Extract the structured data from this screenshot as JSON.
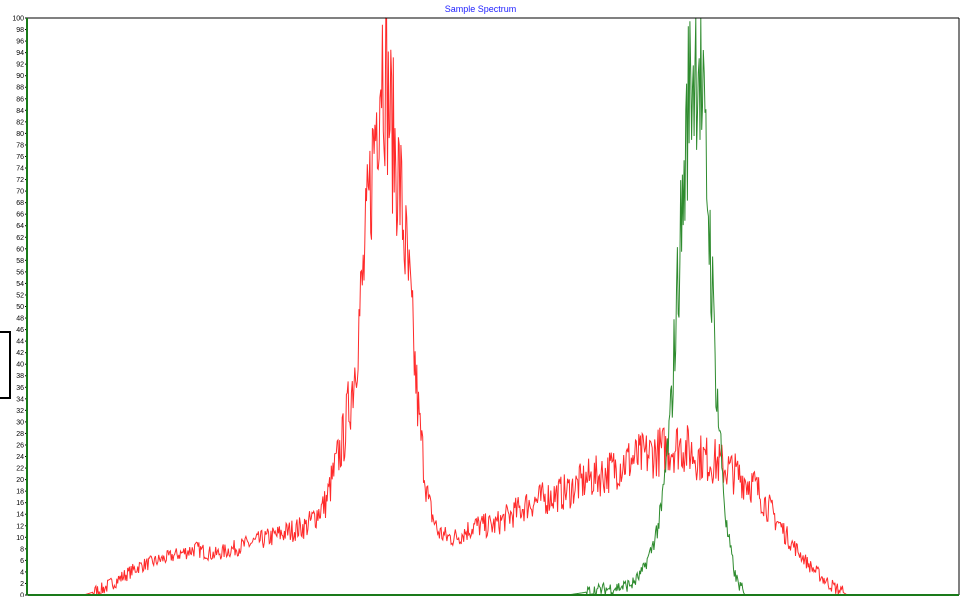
{
  "chart_data": {
    "type": "line",
    "title": "Sample Spectrum",
    "xlabel": "",
    "ylabel": "",
    "ylim": [
      0,
      100
    ],
    "yticks": [
      0,
      2,
      4,
      6,
      8,
      10,
      12,
      14,
      16,
      18,
      20,
      22,
      24,
      26,
      28,
      30,
      32,
      34,
      36,
      38,
      40,
      42,
      44,
      46,
      48,
      50,
      52,
      54,
      56,
      58,
      60,
      62,
      64,
      66,
      68,
      70,
      72,
      74,
      76,
      78,
      80,
      82,
      84,
      86,
      88,
      90,
      92,
      94,
      96,
      98,
      100
    ],
    "xlim": [
      0,
      1000
    ],
    "grid": false,
    "legend": "none",
    "series": [
      {
        "color": "#ff2a2a",
        "x": [
          40,
          60,
          80,
          100,
          120,
          140,
          160,
          180,
          200,
          220,
          240,
          260,
          280,
          300,
          320,
          340,
          350,
          360,
          370,
          380,
          390,
          400,
          410,
          420,
          430,
          440,
          450,
          460,
          480,
          500,
          520,
          540,
          560,
          580,
          600,
          620,
          640,
          660,
          680,
          700,
          720,
          740,
          760,
          780,
          800,
          820,
          840,
          860,
          880,
          900,
          920,
          940,
          960,
          980,
          1000
        ],
        "y": [
          0,
          0,
          1,
          3,
          5,
          6,
          7,
          8,
          7,
          8,
          9,
          10,
          11,
          12,
          16,
          28,
          38,
          55,
          75,
          95,
          82,
          70,
          52,
          30,
          16,
          11,
          10,
          10,
          12,
          12,
          14,
          16,
          17,
          18,
          20,
          21,
          23,
          24,
          25,
          26,
          24,
          23,
          21,
          19,
          14,
          9,
          5,
          2,
          0,
          0,
          0,
          0,
          0,
          0,
          0
        ]
      },
      {
        "color": "#2e8b2e",
        "x": [
          0,
          500,
          580,
          600,
          620,
          640,
          650,
          660,
          670,
          680,
          690,
          695,
          700,
          705,
          710,
          720,
          730,
          740,
          750,
          760,
          770,
          1000
        ],
        "y": [
          0,
          0,
          0,
          0.5,
          1,
          1.5,
          2,
          4,
          8,
          14,
          30,
          45,
          60,
          72,
          88,
          95,
          70,
          35,
          12,
          3,
          0,
          0
        ]
      }
    ]
  }
}
